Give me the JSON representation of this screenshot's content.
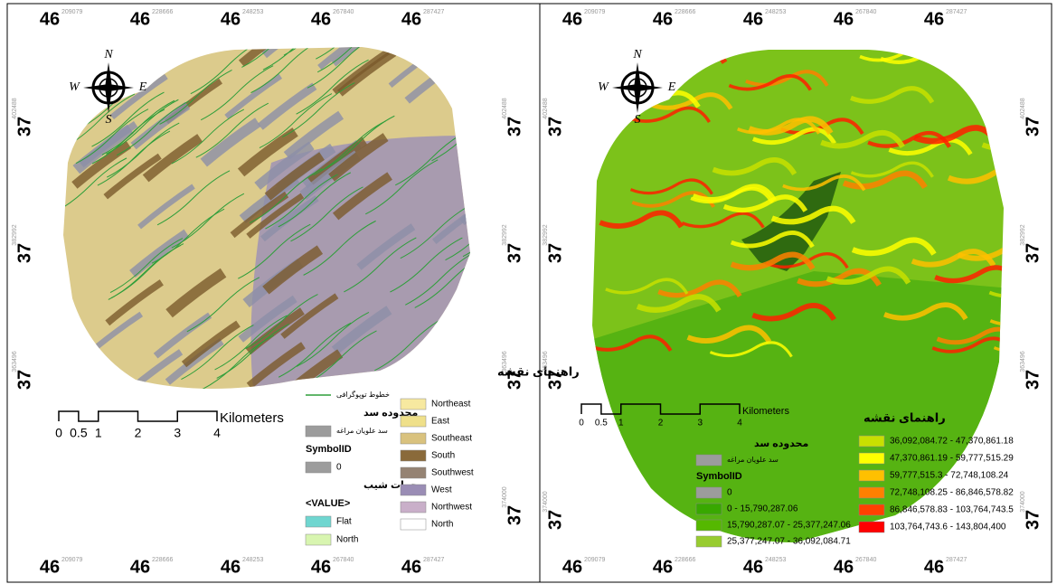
{
  "panels": [
    {
      "top_labels": [
        {
          "major": "46",
          "minor": "209079"
        },
        {
          "major": "46",
          "minor": "228666"
        },
        {
          "major": "46",
          "minor": "248253"
        },
        {
          "major": "46",
          "minor": "267840"
        },
        {
          "major": "46",
          "minor": "287427"
        }
      ],
      "bottom_labels": [
        {
          "major": "46",
          "minor": "209079"
        },
        {
          "major": "46",
          "minor": "228666"
        },
        {
          "major": "46",
          "minor": "248253"
        },
        {
          "major": "46",
          "minor": "267840"
        },
        {
          "major": "46",
          "minor": "287427"
        }
      ],
      "left_labels": [
        {
          "major": "37",
          "minor": "402488"
        },
        {
          "major": "37",
          "minor": "382992"
        },
        {
          "major": "37",
          "minor": "363496"
        }
      ],
      "right_labels": [
        {
          "major": "37",
          "minor": "402488"
        },
        {
          "major": "37",
          "minor": "382992"
        },
        {
          "major": "37",
          "minor": "363496"
        },
        {
          "major": "37",
          "minor": "374000"
        }
      ],
      "compass": {
        "n": "N",
        "e": "E",
        "s": "S",
        "w": "W"
      },
      "scale": {
        "ticks": [
          "0",
          "0.5",
          "1",
          "2",
          "3",
          "4"
        ],
        "unit": "Kilometers"
      },
      "legend": {
        "title": "راهنمای نقشه",
        "columns": [
          [
            {
              "label": "خطوط توپوگرافی",
              "line_color": "#2e9e3a"
            },
            {
              "label": "محدوده سد"
            },
            {
              "label": "سد علویان مراغه",
              "color": "#9c9c9c"
            },
            {
              "label": "SymbolID"
            },
            {
              "label": "0",
              "color": "#9c9c9c"
            },
            {
              "label": "جهات شیب"
            },
            {
              "label": "<VALUE>"
            },
            {
              "label": "Flat",
              "color": "#6fd6d0"
            },
            {
              "label": "North",
              "color": "#d8f5b0"
            }
          ],
          [
            {
              "label": "Northeast",
              "color": "#f7e9a0"
            },
            {
              "label": "East",
              "color": "#efe08a"
            },
            {
              "label": "Southeast",
              "color": "#d9c27e"
            },
            {
              "label": "South",
              "color": "#8a6a3a"
            },
            {
              "label": "Southwest",
              "color": "#958373"
            },
            {
              "label": "West",
              "color": "#9a8db5"
            },
            {
              "label": "Northwest",
              "color": "#c9afc9"
            },
            {
              "label": "North",
              "color": "#ffffff"
            }
          ]
        ]
      }
    },
    {
      "top_labels": [
        {
          "major": "46",
          "minor": "209079"
        },
        {
          "major": "46",
          "minor": "228666"
        },
        {
          "major": "46",
          "minor": "248253"
        },
        {
          "major": "46",
          "minor": "267840"
        },
        {
          "major": "46",
          "minor": "287427"
        }
      ],
      "bottom_labels": [
        {
          "major": "46",
          "minor": "209079"
        },
        {
          "major": "46",
          "minor": "228666"
        },
        {
          "major": "46",
          "minor": "248253"
        },
        {
          "major": "46",
          "minor": "267840"
        },
        {
          "major": "46",
          "minor": "287427"
        }
      ],
      "left_labels": [
        {
          "major": "37",
          "minor": "402488"
        },
        {
          "major": "37",
          "minor": "382992"
        },
        {
          "major": "37",
          "minor": "363496"
        },
        {
          "major": "37",
          "minor": "374000"
        }
      ],
      "right_labels": [
        {
          "major": "37",
          "minor": "402488"
        },
        {
          "major": "37",
          "minor": "382992"
        },
        {
          "major": "37",
          "minor": "363496"
        },
        {
          "major": "37",
          "minor": "374000"
        }
      ],
      "compass": {
        "n": "N",
        "e": "E",
        "s": "S",
        "w": "W"
      },
      "scale": {
        "ticks": [
          "0",
          "0.5",
          "1",
          "2",
          "3",
          "4"
        ],
        "unit": "Kilometers"
      },
      "legend": {
        "title": "راهنمای نقشه",
        "columns": [
          [
            {
              "label": "محدوده سد"
            },
            {
              "label": "سد علویان مراغه",
              "color": "#9c9c9c"
            },
            {
              "label": "SymbolID"
            },
            {
              "label": "0",
              "color": "#9c9c9c"
            },
            {
              "label": "0 - 15,790,287.06",
              "color": "#38a800"
            },
            {
              "label": "15,790,287.07 - 25,377,247.06",
              "color": "#55b800"
            },
            {
              "label": "25,377,247.07 - 36,092,084.71",
              "color": "#98cc30"
            }
          ],
          [
            {
              "label": "36,092,084.72 - 47,370,861.18",
              "color": "#c8e000"
            },
            {
              "label": "47,370,861.19 - 59,777,515.29",
              "color": "#ffff00"
            },
            {
              "label": "59,777,515.3 - 72,748,108.24",
              "color": "#ffc000"
            },
            {
              "label": "72,748,108.25 - 86,846,578.82",
              "color": "#ff8000"
            },
            {
              "label": "86,846,578.83 - 103,764,743.5",
              "color": "#ff4000"
            },
            {
              "label": "103,764,743.6 - 143,804,400",
              "color": "#ff0000"
            }
          ]
        ]
      }
    }
  ]
}
